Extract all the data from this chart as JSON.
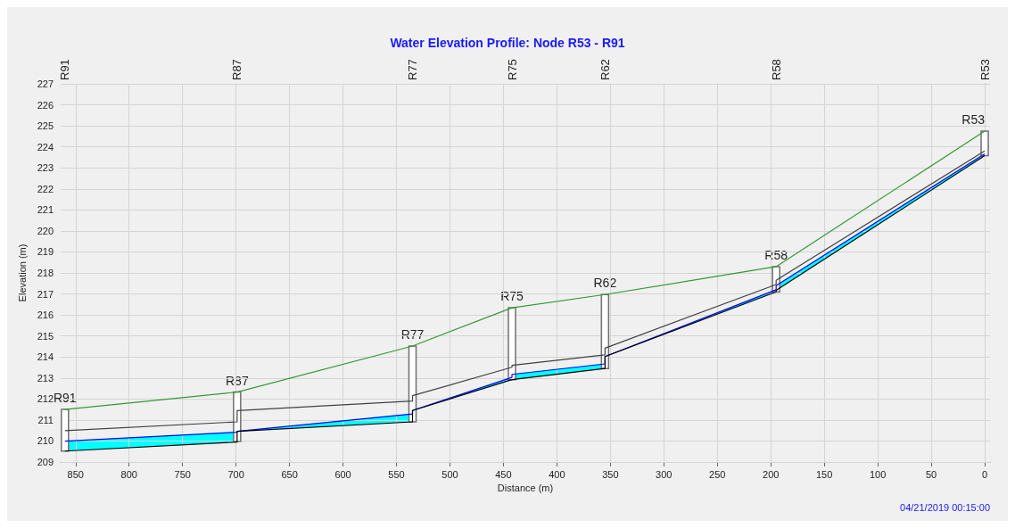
{
  "chart_data": {
    "type": "line",
    "title": "Water Elevation Profile: Node R53 - R91",
    "xlabel": "Distance (m)",
    "ylabel": "Elevation (m)",
    "xlim": [
      864,
      -5
    ],
    "xticks": [
      850,
      800,
      750,
      700,
      650,
      600,
      550,
      500,
      450,
      400,
      350,
      300,
      250,
      200,
      150,
      100,
      50,
      0
    ],
    "ylim": [
      209,
      227
    ],
    "yticks": [
      209,
      210,
      211,
      212,
      213,
      214,
      215,
      216,
      217,
      218,
      219,
      220,
      221,
      222,
      223,
      224,
      225,
      226,
      227
    ],
    "grid": true,
    "marker": "none",
    "series": [
      {
        "type": "bar",
        "color": "#ffffff",
        "x": [
          860,
          699,
          535,
          442,
          355,
          195,
          0
        ],
        "base": [
          209.52,
          209.98,
          210.91,
          212.92,
          213.45,
          217.1,
          223.58
        ],
        "values": [
          1.98,
          2.35,
          3.61,
          3.42,
          3.52,
          1.2,
          1.17
        ]
      },
      {
        "color": "#339933",
        "x": [
          860,
          699,
          535,
          442,
          355,
          195,
          0
        ],
        "values": [
          211.5,
          212.33,
          214.52,
          216.34,
          216.97,
          218.3,
          224.75
        ]
      },
      {
        "color": "#404040",
        "x": [
          860,
          699,
          699,
          535,
          535,
          442,
          442,
          355,
          355,
          195,
          195,
          0
        ],
        "values": [
          210.49,
          210.91,
          211.45,
          211.9,
          212.16,
          213.51,
          213.6,
          214.1,
          214.42,
          217.45,
          217.65,
          223.81
        ]
      },
      {
        "color": "#0000ff",
        "x": [
          860,
          699,
          699,
          535,
          535,
          442,
          442,
          355,
          355,
          195,
          195,
          0
        ],
        "values": [
          209.99,
          210.42,
          210.46,
          211.29,
          211.45,
          213.03,
          213.17,
          213.67,
          214.02,
          217.2,
          217.4,
          223.67
        ],
        "lower": [
          209.52,
          209.95,
          210.46,
          210.91,
          211.45,
          212.92,
          212.92,
          213.45,
          214.02,
          217.1,
          217.17,
          223.58
        ],
        "upper": [
          209.99,
          210.42,
          210.46,
          211.29,
          211.45,
          213.03,
          213.17,
          213.67,
          214.02,
          217.2,
          217.4,
          223.67
        ]
      },
      {
        "color": "#000000",
        "x": [
          860,
          699,
          699,
          535,
          535,
          442,
          442,
          355,
          355,
          195,
          195,
          0
        ],
        "values": [
          209.52,
          209.95,
          210.46,
          210.91,
          211.45,
          212.92,
          212.92,
          213.45,
          214.02,
          217.1,
          217.17,
          223.58
        ]
      }
    ],
    "annotations": [
      "R91",
      "R87",
      "R77",
      "R75",
      "R62",
      "R58",
      "R53",
      {
        "text": "R91",
        "x": 860,
        "y": 211.5
      },
      {
        "text": "R87",
        "x": 699,
        "y": 212.33
      },
      {
        "text": "R77",
        "x": 535,
        "y": 214.52
      },
      {
        "text": "R75",
        "x": 442,
        "y": 216.34
      },
      {
        "text": "R62",
        "x": 355,
        "y": 216.97
      },
      {
        "text": "R58",
        "x": 195,
        "y": 218.3
      },
      {
        "text": "R53",
        "x": 0,
        "y": 224.75
      },
      "04/21/2019 00:15:00"
    ]
  }
}
